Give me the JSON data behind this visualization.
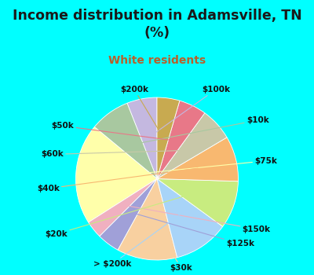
{
  "title": "Income distribution in Adamsville, TN\n(%)",
  "subtitle": "White residents",
  "title_color": "#1a1a1a",
  "subtitle_color": "#b8602a",
  "background_color": "#00ffff",
  "chart_bg_from": "#e8f5ee",
  "chart_bg_to": "#d0ead8",
  "labels": [
    "$100k",
    "$10k",
    "$75k",
    "$150k",
    "$125k",
    "$30k",
    "> $200k",
    "$20k",
    "$40k",
    "$60k",
    "$50k",
    "$200k"
  ],
  "values": [
    6.0,
    8.0,
    20.0,
    3.5,
    4.5,
    12.0,
    11.0,
    9.5,
    9.0,
    6.5,
    5.5,
    4.5
  ],
  "colors": [
    "#c4b8e0",
    "#a8c8a0",
    "#ffffaa",
    "#f0b0c0",
    "#a0a0d8",
    "#f8d0a0",
    "#a8d4f8",
    "#c8ec80",
    "#f8b870",
    "#c8c8a8",
    "#e87888",
    "#c8aa50"
  ],
  "startangle": 90,
  "label_fontsize": 7.5,
  "title_fontsize": 12.5,
  "subtitle_fontsize": 10
}
